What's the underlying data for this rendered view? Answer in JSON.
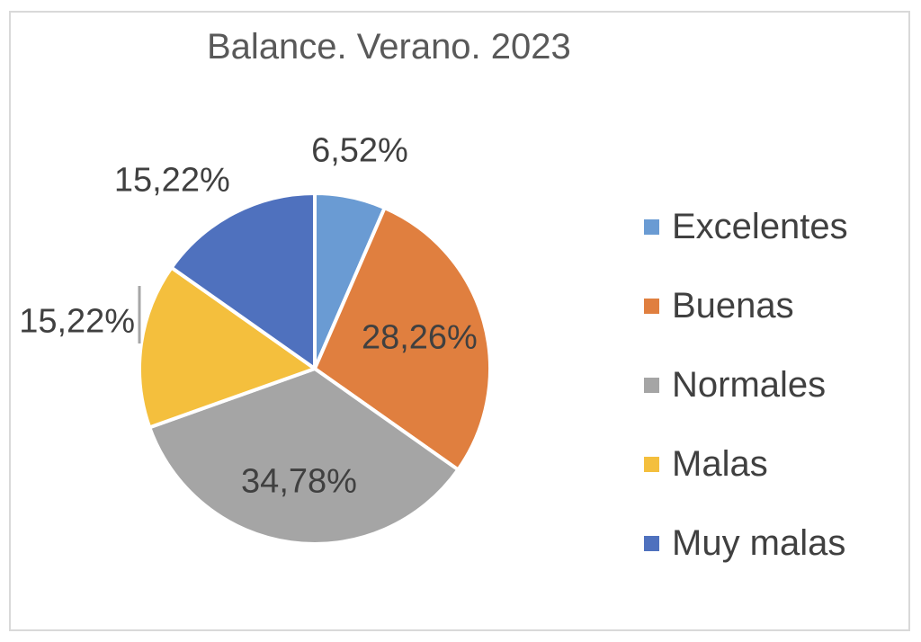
{
  "chart_data": {
    "type": "pie",
    "title": "Balance. Verano. 2023",
    "categories": [
      "Excelentes",
      "Buenas",
      "Normales",
      "Malas",
      "Muy malas"
    ],
    "values": [
      6.52,
      28.26,
      34.78,
      15.22,
      15.22
    ],
    "data_labels": [
      "6,52%",
      "28,26%",
      "34,78%",
      "15,22%",
      "15,22%"
    ],
    "colors": [
      "#6a9bd3",
      "#e07f3f",
      "#a5a5a5",
      "#f4bf3d",
      "#4f71be"
    ],
    "label_color": "#404040",
    "legend_position": "right"
  }
}
